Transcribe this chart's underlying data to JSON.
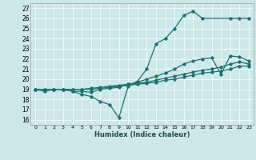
{
  "xlabel": "Humidex (Indice chaleur)",
  "bg_color": "#cde8e8",
  "grid_color": "#b0d0d0",
  "line_color": "#1e7070",
  "xlim": [
    -0.5,
    23.5
  ],
  "ylim": [
    15.5,
    27.5
  ],
  "xtick_vals": [
    0,
    1,
    2,
    3,
    4,
    5,
    6,
    7,
    8,
    9,
    10,
    11,
    12,
    13,
    14,
    15,
    16,
    17,
    18,
    19,
    20,
    21,
    22,
    23
  ],
  "ytick_vals": [
    16,
    17,
    18,
    19,
    20,
    21,
    22,
    23,
    24,
    25,
    26,
    27
  ],
  "line1_x": [
    0,
    1,
    2,
    3,
    4,
    5,
    6,
    7,
    8,
    9,
    10,
    11,
    12,
    13,
    14,
    15,
    16,
    17,
    18,
    21,
    22,
    23
  ],
  "line1_y": [
    19,
    18.8,
    19,
    19,
    18.8,
    18.5,
    18.3,
    17.8,
    17.5,
    16.2,
    19.3,
    19.8,
    21.0,
    23.5,
    24.0,
    25.0,
    26.3,
    26.7,
    26.0,
    26.0,
    26.0,
    26.0
  ],
  "line2_x": [
    0,
    1,
    2,
    3,
    4,
    5,
    6,
    7,
    8,
    9,
    10,
    11,
    12,
    13,
    14,
    15,
    16,
    17,
    18,
    19,
    20,
    21,
    22,
    23
  ],
  "line2_y": [
    19,
    19,
    19,
    19,
    18.8,
    18.8,
    18.7,
    19.0,
    19.1,
    19.2,
    19.5,
    19.7,
    20.0,
    20.3,
    20.6,
    21.0,
    21.5,
    21.8,
    22.0,
    22.1,
    20.5,
    22.3,
    22.2,
    21.8
  ],
  "line3_x": [
    0,
    1,
    2,
    3,
    4,
    5,
    6,
    7,
    8,
    9,
    10,
    11,
    12,
    13,
    14,
    15,
    16,
    17,
    18,
    19,
    20,
    21,
    22,
    23
  ],
  "line3_y": [
    19,
    19,
    19,
    19,
    19,
    19,
    19.1,
    19.2,
    19.3,
    19.4,
    19.5,
    19.6,
    19.7,
    19.9,
    20.1,
    20.3,
    20.5,
    20.7,
    20.9,
    21.0,
    21.2,
    21.5,
    21.7,
    21.5
  ],
  "line4_x": [
    0,
    1,
    2,
    3,
    4,
    5,
    6,
    7,
    8,
    9,
    10,
    11,
    12,
    13,
    14,
    15,
    16,
    17,
    18,
    19,
    20,
    21,
    22,
    23
  ],
  "line4_y": [
    19,
    19,
    19,
    19,
    19,
    19,
    19.0,
    19.1,
    19.2,
    19.3,
    19.4,
    19.5,
    19.6,
    19.7,
    19.9,
    20.0,
    20.2,
    20.4,
    20.6,
    20.7,
    20.8,
    21.0,
    21.3,
    21.3
  ]
}
